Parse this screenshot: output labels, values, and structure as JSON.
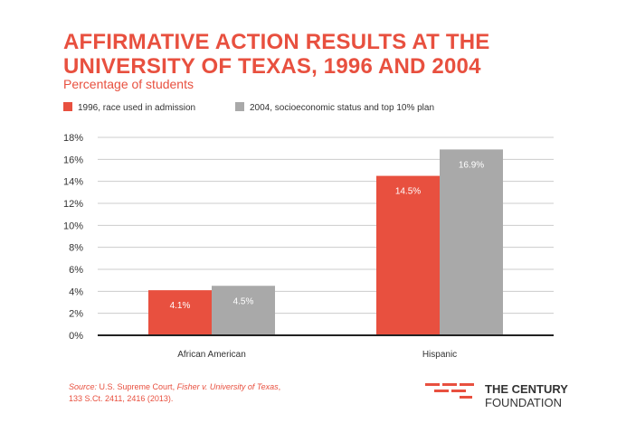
{
  "title": "AFFIRMATIVE ACTION RESULTS AT THE UNIVERSITY OF TEXAS, 1996 AND 2004",
  "subtitle": "Percentage of students",
  "source": {
    "prefix": "Source:",
    "text1": " U.S. Supreme Court, ",
    "case": "Fisher v. University of Texas",
    "text2": ", 133 S.Ct. 2411, 2416 (2013)."
  },
  "logo": {
    "line1": "THE CENTURY",
    "line2": "FOUNDATION"
  },
  "colors": {
    "accent": "#e8503f",
    "series1": "#e8503f",
    "series2": "#a9a9a9",
    "grid": "#cccccc",
    "axis": "#222222"
  },
  "chart_data": {
    "type": "bar",
    "categories": [
      "African American",
      "Hispanic"
    ],
    "series": [
      {
        "name": "1996, race used in admission",
        "values": [
          4.1,
          14.5
        ],
        "labels": [
          "4.1%",
          "14.5%"
        ]
      },
      {
        "name": "2004, socioeconomic status and top 10% plan",
        "values": [
          4.5,
          16.9
        ],
        "labels": [
          "4.5%",
          "16.9%"
        ]
      }
    ],
    "ylim": [
      0,
      18
    ],
    "yticks": [
      0,
      2,
      4,
      6,
      8,
      10,
      12,
      14,
      16,
      18
    ],
    "ytick_labels": [
      "0%",
      "2%",
      "4%",
      "6%",
      "8%",
      "10%",
      "12%",
      "14%",
      "16%",
      "18%"
    ],
    "grid": true,
    "legend_position": "top-left"
  }
}
